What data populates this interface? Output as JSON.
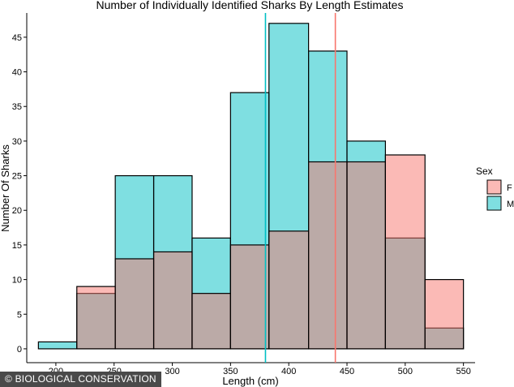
{
  "chart_data": {
    "type": "bar",
    "title": "Number of Individually Identified Sharks By Length Estimates",
    "xlabel": "Length (cm)",
    "ylabel": "Number Of Sharks",
    "bin_edges": [
      185,
      218,
      251,
      284,
      317,
      350,
      383,
      417,
      450,
      483,
      517,
      550
    ],
    "xlim": [
      175,
      560
    ],
    "ylim": [
      -2,
      48.5
    ],
    "x_ticks": [
      200,
      250,
      300,
      350,
      400,
      450,
      500,
      550
    ],
    "y_ticks": [
      0,
      5,
      10,
      15,
      20,
      25,
      30,
      35,
      40,
      45
    ],
    "grid": false,
    "legend": {
      "title": "Sex",
      "position": "right"
    },
    "series": [
      {
        "name": "F",
        "color": "#F8766D",
        "values": [
          0,
          9,
          13,
          14,
          8,
          15,
          17,
          27,
          27,
          28,
          10
        ]
      },
      {
        "name": "M",
        "color": "#00BFC4",
        "values": [
          1,
          8,
          25,
          25,
          16,
          37,
          47,
          43,
          30,
          16,
          3
        ]
      }
    ],
    "reference_lines": [
      {
        "x": 380,
        "color": "#00BFC4"
      },
      {
        "x": 440,
        "color": "#F8766D"
      }
    ]
  },
  "watermark": "© BIOLOGICAL CONSERVATION"
}
